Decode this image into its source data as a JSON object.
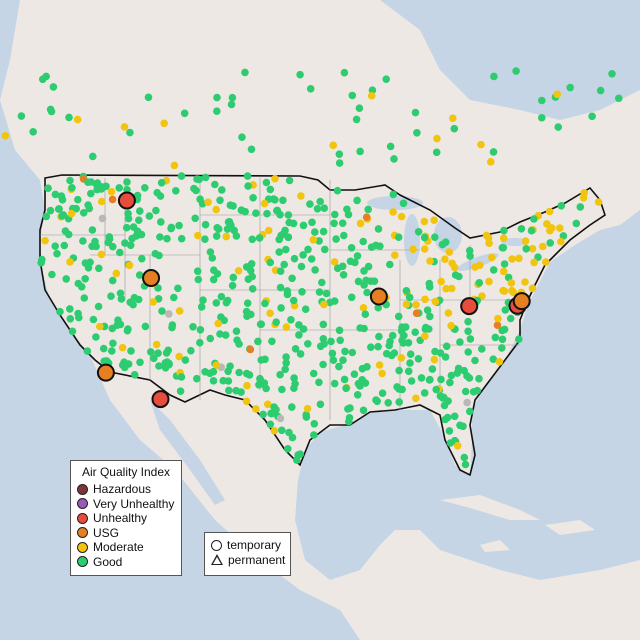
{
  "legend": {
    "title": "Air Quality Index",
    "categories": [
      {
        "label": "Hazardous",
        "color": "#7d3535"
      },
      {
        "label": "Very Unhealthy",
        "color": "#9b59b6"
      },
      {
        "label": "Unhealthy",
        "color": "#e74c3c"
      },
      {
        "label": "USG",
        "color": "#e67e22"
      },
      {
        "label": "Moderate",
        "color": "#f1c40f"
      },
      {
        "label": "Good",
        "color": "#2ecc71"
      }
    ]
  },
  "shape_legend": {
    "temporary": "temporary",
    "permanent": "permanent"
  },
  "colors": {
    "water": "#c5d5e5",
    "land": "#eee8e4",
    "no_data": "#b8b8b8"
  },
  "highlighted_monitors": [
    {
      "category": "Unhealthy",
      "lon": -114.2,
      "lat": 46.9
    },
    {
      "category": "USG",
      "lon": -111.9,
      "lat": 40.7
    },
    {
      "category": "USG",
      "lon": -116.2,
      "lat": 33.9
    },
    {
      "category": "Unhealthy",
      "lon": -111.0,
      "lat": 31.3
    },
    {
      "category": "USG",
      "lon": -90.2,
      "lat": 38.6
    },
    {
      "category": "Unhealthy",
      "lon": -81.6,
      "lat": 38.4
    },
    {
      "category": "Unhealthy",
      "lon": -77.0,
      "lat": 38.9
    },
    {
      "category": "USG",
      "lon": -76.6,
      "lat": 39.3
    }
  ]
}
